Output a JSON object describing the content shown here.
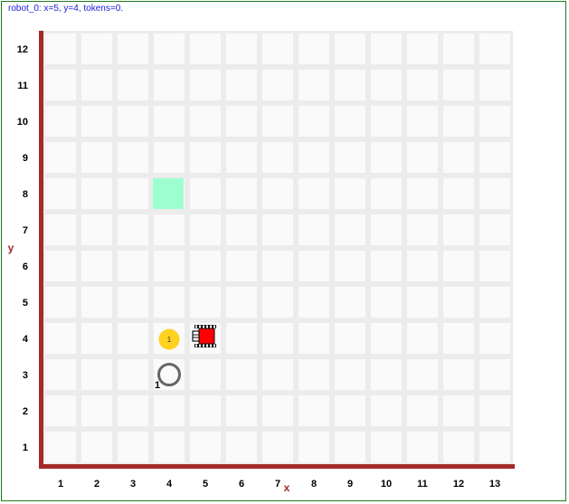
{
  "status": {
    "text": "robot_0: x=5, y=4, tokens=0."
  },
  "grid": {
    "columns": 13,
    "rows": 12,
    "x_labels": [
      "1",
      "2",
      "3",
      "4",
      "5",
      "6",
      "7",
      "8",
      "9",
      "10",
      "11",
      "12",
      "13"
    ],
    "y_labels": [
      "1",
      "2",
      "3",
      "4",
      "5",
      "6",
      "7",
      "8",
      "9",
      "10",
      "11",
      "12"
    ],
    "x_axis_title": "x",
    "y_axis_title": "y"
  },
  "colors": {
    "frame": "#1e7a1e",
    "status_text": "#1a1adb",
    "axis": "#a52a2a",
    "goal_tile": "#9dffd0",
    "token": "#ffd21f",
    "target_ring": "#666666",
    "robot_body": "#ff0000"
  },
  "objects": {
    "goal_tile": {
      "icon": "goal-tile",
      "x": 4,
      "y": 8
    },
    "token": {
      "icon": "token-icon",
      "x": 4,
      "y": 4,
      "label": "1"
    },
    "target_ring": {
      "icon": "ring-icon",
      "x": 4,
      "y": 3,
      "count": "1"
    },
    "robot": {
      "icon": "robot-icon",
      "name": "robot_0",
      "x": 5,
      "y": 4,
      "tokens": 0
    }
  }
}
